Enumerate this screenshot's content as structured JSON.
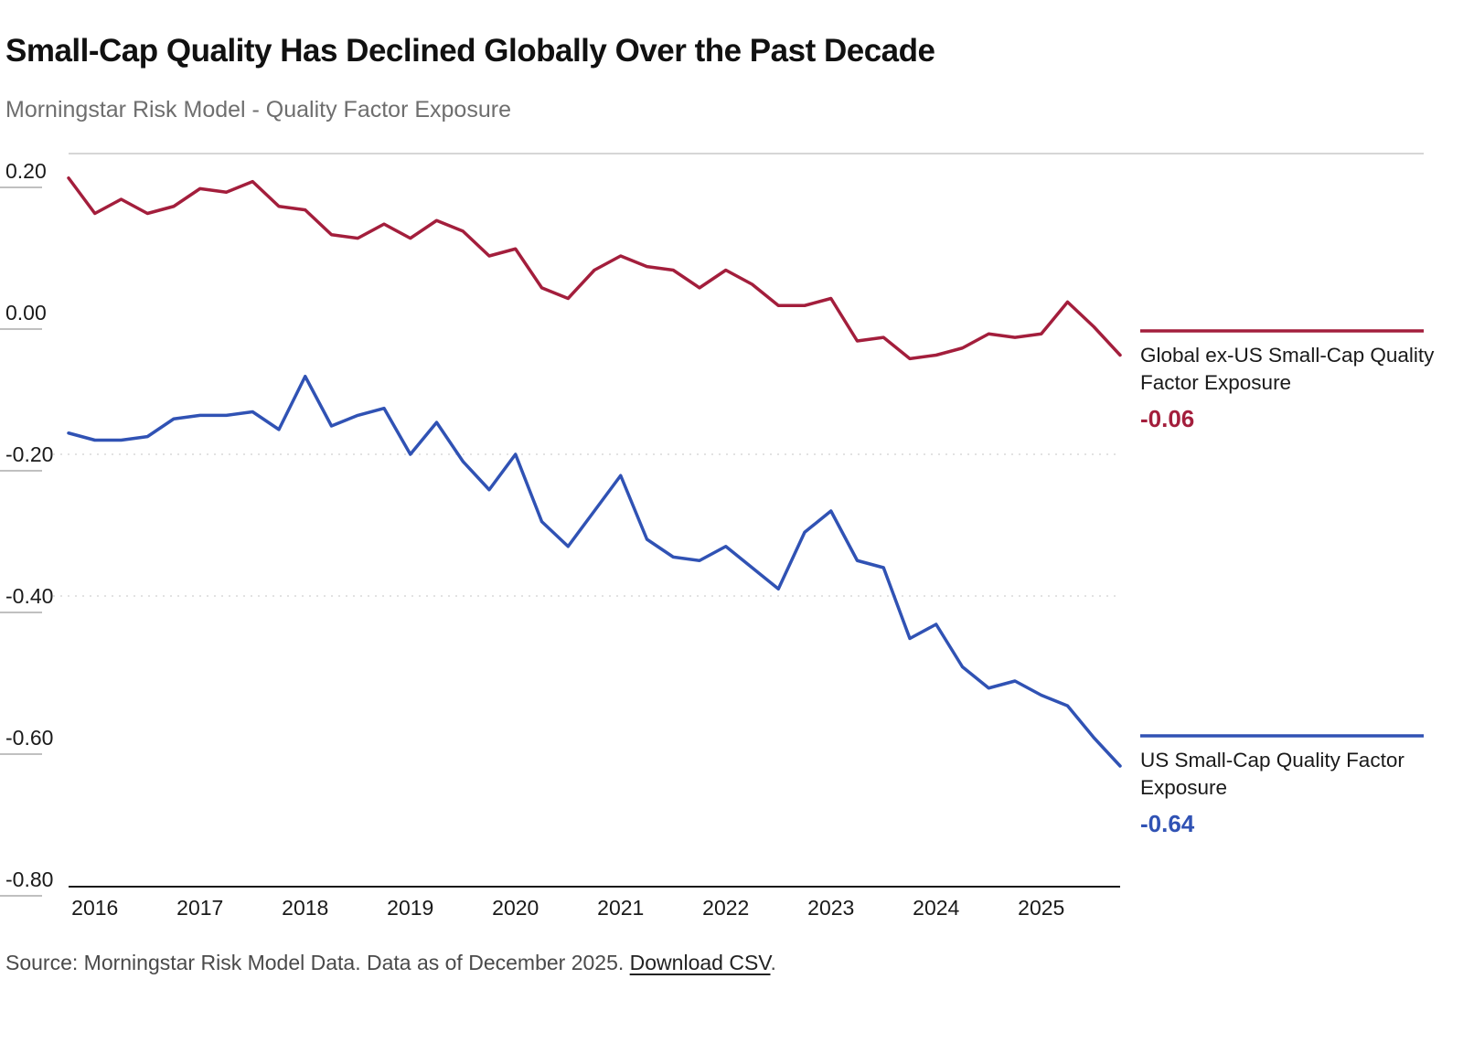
{
  "header": {
    "title": "Small-Cap Quality Has Declined Globally Over the Past Decade",
    "subtitle": "Morningstar Risk Model - Quality Factor Exposure"
  },
  "footer": {
    "source_text": "Source: Morningstar Risk Model Data. Data as of December 2025.",
    "download_label": "Download CSV",
    "period": "."
  },
  "chart_data": {
    "type": "line",
    "title": "Small-Cap Quality Has Declined Globally Over the Past Decade",
    "subtitle": "Morningstar Risk Model - Quality Factor Exposure",
    "x_tick_labels": [
      "2016",
      "2017",
      "2018",
      "2019",
      "2020",
      "2021",
      "2022",
      "2023",
      "2024",
      "2025"
    ],
    "x_tick_indices": [
      1,
      5,
      9,
      13,
      17,
      21,
      25,
      29,
      33,
      37
    ],
    "points_per_year": 4,
    "y_ticks": [
      0.2,
      0.0,
      -0.2,
      -0.4,
      -0.6,
      -0.8
    ],
    "y_tick_labels": [
      "0.20",
      "0.00",
      "-0.20",
      "-0.40",
      "-0.60",
      "-0.80"
    ],
    "ylim": [
      -0.85,
      0.225
    ],
    "dashed_gridlines": [
      -0.2,
      -0.4
    ],
    "legend_position": "right",
    "series": [
      {
        "name": "Global ex-US Small-Cap Quality Factor Exposure",
        "color": "#a31e3c",
        "end_label": "-0.06",
        "end_value": -0.06,
        "values": [
          0.19,
          0.14,
          0.16,
          0.14,
          0.15,
          0.175,
          0.17,
          0.185,
          0.15,
          0.145,
          0.11,
          0.105,
          0.125,
          0.105,
          0.13,
          0.115,
          0.08,
          0.09,
          0.035,
          0.02,
          0.06,
          0.08,
          0.065,
          0.06,
          0.035,
          0.06,
          0.04,
          0.01,
          0.01,
          0.02,
          -0.04,
          -0.035,
          -0.065,
          -0.06,
          -0.05,
          -0.03,
          -0.035,
          -0.03,
          0.015,
          -0.02,
          -0.06
        ]
      },
      {
        "name": "US Small-Cap Quality Factor Exposure",
        "color": "#3052b4",
        "end_label": "-0.64",
        "end_value": -0.64,
        "values": [
          -0.17,
          -0.18,
          -0.18,
          -0.175,
          -0.15,
          -0.145,
          -0.145,
          -0.14,
          -0.165,
          -0.09,
          -0.16,
          -0.145,
          -0.135,
          -0.2,
          -0.155,
          -0.21,
          -0.25,
          -0.2,
          -0.295,
          -0.33,
          -0.28,
          -0.23,
          -0.32,
          -0.345,
          -0.35,
          -0.33,
          -0.36,
          -0.39,
          -0.31,
          -0.28,
          -0.35,
          -0.36,
          -0.46,
          -0.44,
          -0.5,
          -0.53,
          -0.52,
          -0.54,
          -0.555,
          -0.6,
          -0.64
        ]
      }
    ]
  }
}
